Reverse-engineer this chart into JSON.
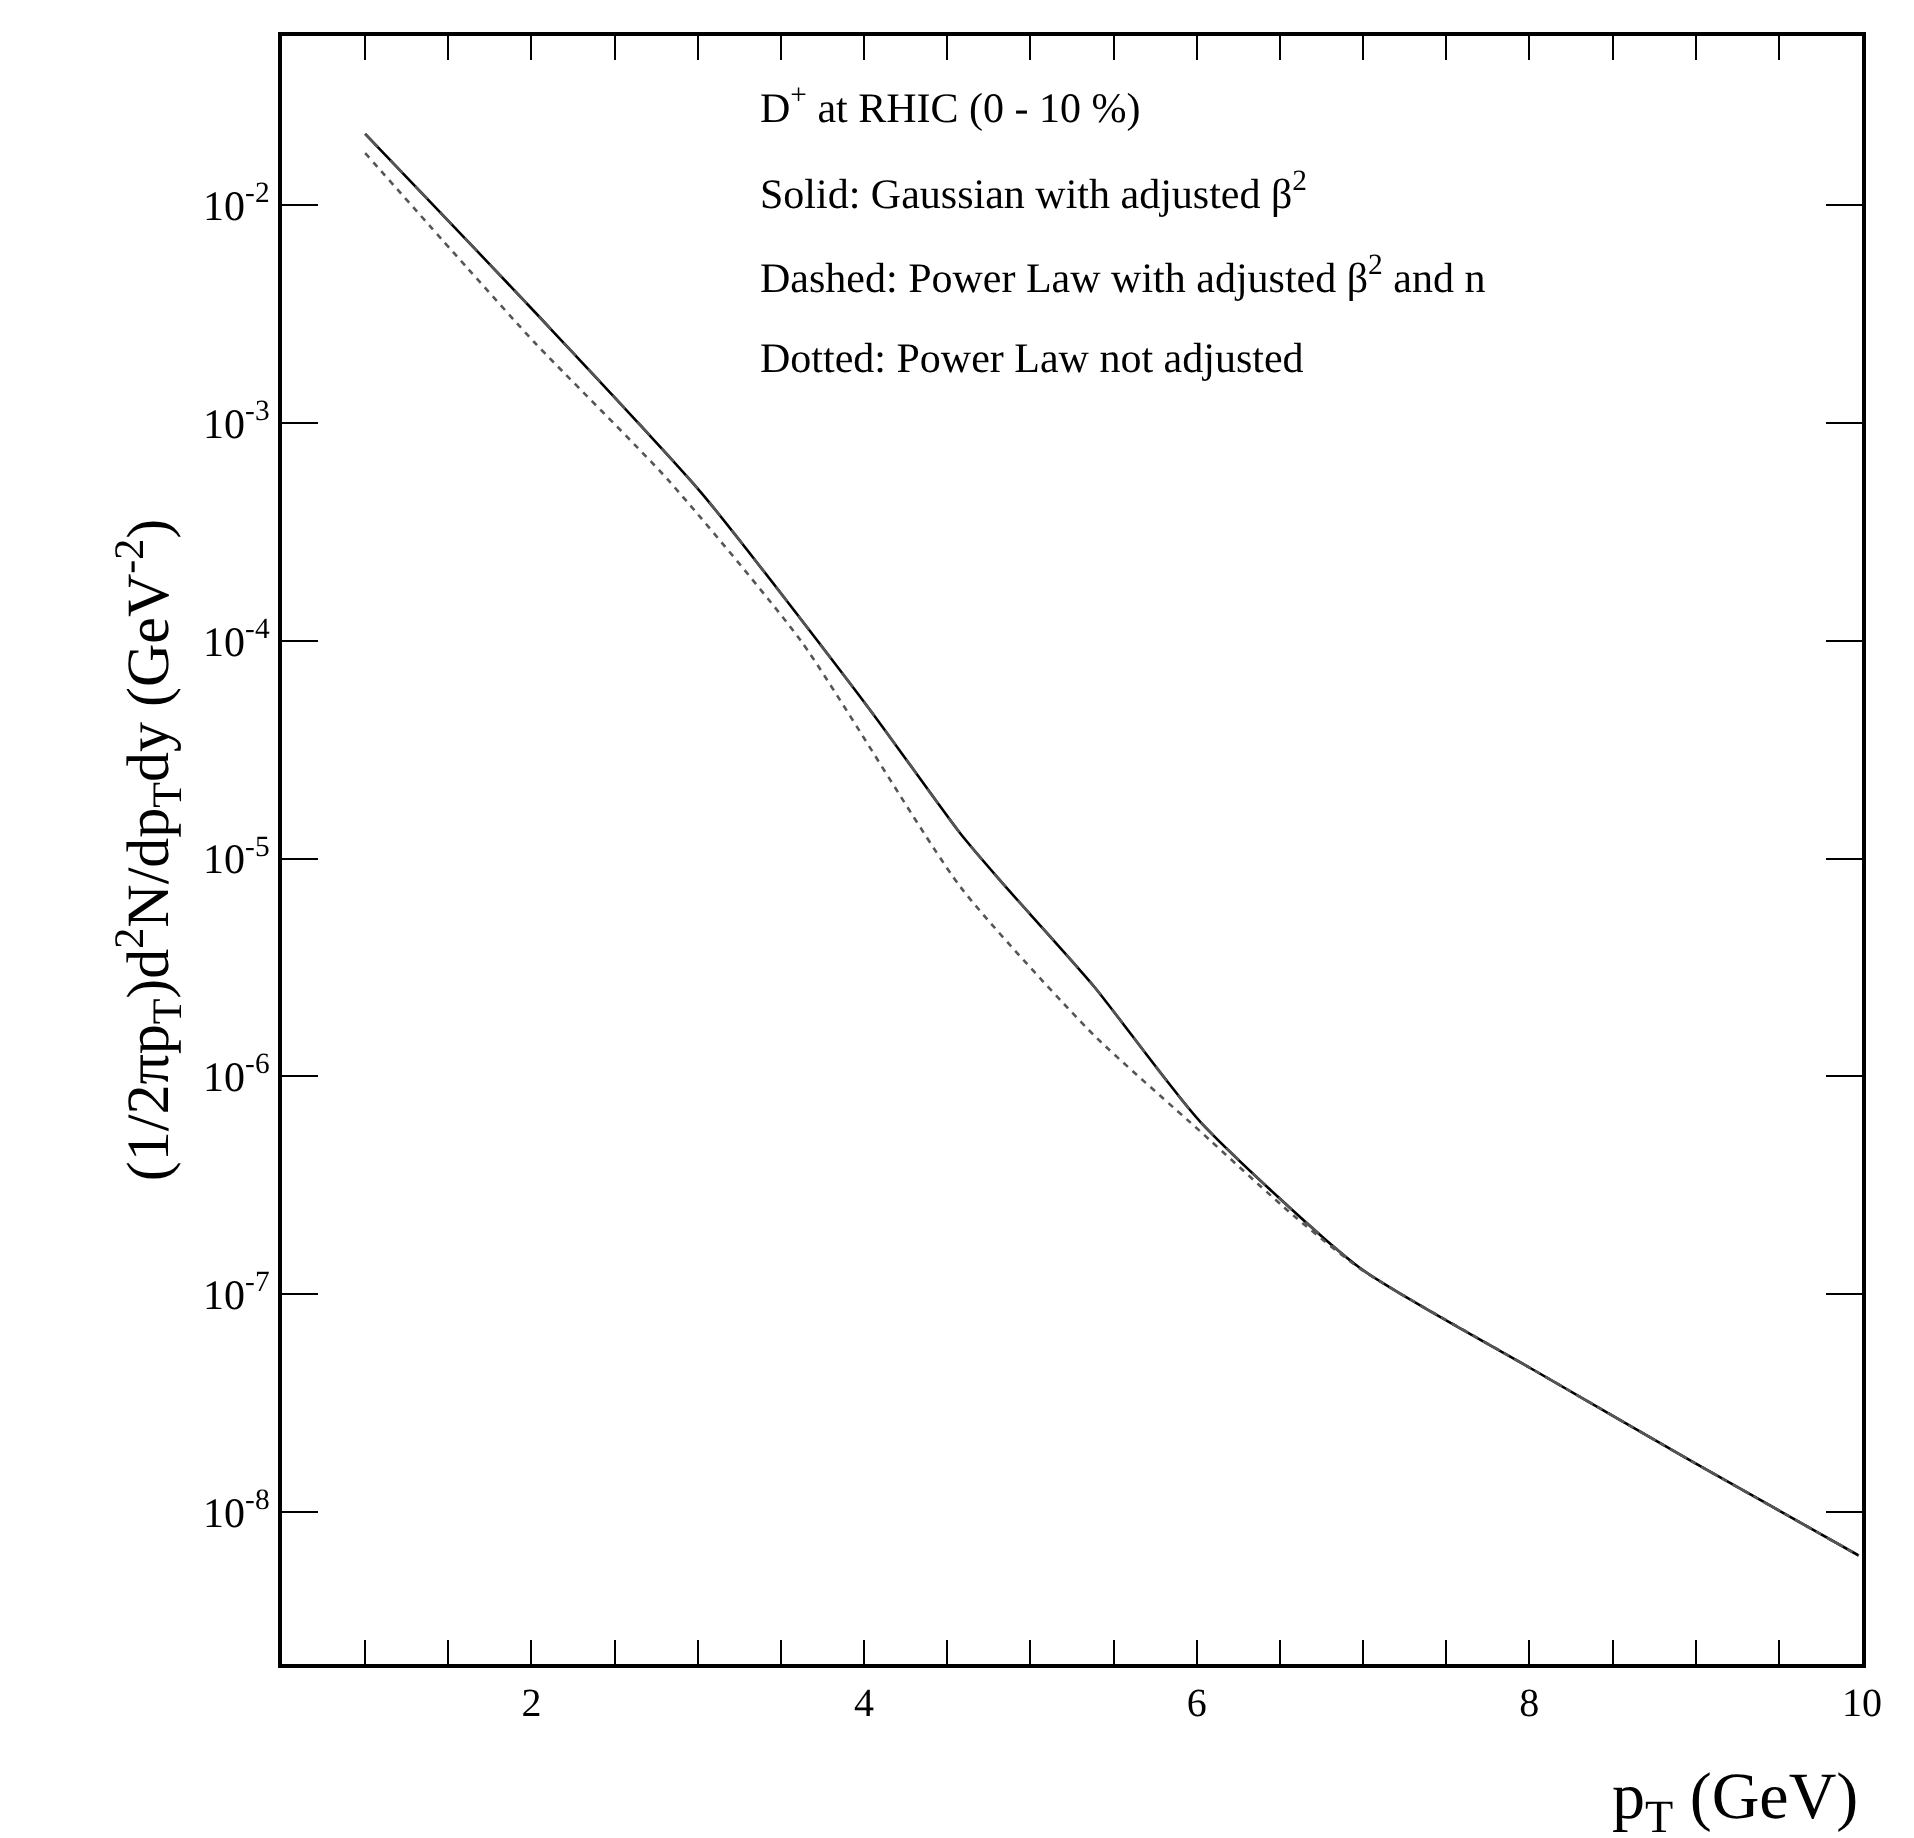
{
  "chart_data": {
    "type": "line",
    "xlabel": "p$_{T}$ (GeV)",
    "ylabel": "(1/2πp$_{T}$)d$^{2}$N/dp$_{T}$dy (GeV$^{-2}$)",
    "annotations": [
      "D$^{+}$ at RHIC (0 - 10 %)",
      "Solid: Gaussian with adjusted β$^{2}$",
      "Dashed: Power Law with adjusted β$^{2}$ and n",
      "Dotted: Power Law not adjusted"
    ],
    "log": "y",
    "grid": false,
    "marker": "none",
    "xlim": [
      0.5,
      10
    ],
    "ylim": [
      2e-09,
      0.06
    ],
    "xticks": [
      {
        "value": 1,
        "label": null
      },
      {
        "value": 1.5,
        "label": null
      },
      2,
      {
        "value": 2.5,
        "label": null
      },
      {
        "value": 3,
        "label": null
      },
      {
        "value": 3.5,
        "label": null
      },
      4,
      {
        "value": 4.5,
        "label": null
      },
      {
        "value": 5,
        "label": null
      },
      {
        "value": 5.5,
        "label": null
      },
      6,
      {
        "value": 6.5,
        "label": null
      },
      {
        "value": 7,
        "label": null
      },
      {
        "value": 7.5,
        "label": null
      },
      8,
      {
        "value": 8.5,
        "label": null
      },
      {
        "value": 9,
        "label": null
      },
      {
        "value": 9.5,
        "label": null
      },
      10
    ],
    "yticks": [
      {
        "value": 0.01,
        "label": "10$^{-2}$"
      },
      {
        "value": 0.001,
        "label": "10$^{-3}$"
      },
      {
        "value": 0.0001,
        "label": "10$^{-4}$"
      },
      {
        "value": 1e-05,
        "label": "10$^{-5}$"
      },
      {
        "value": 1e-06,
        "label": "10$^{-6}$"
      },
      {
        "value": 1e-07,
        "label": "10$^{-7}$"
      },
      {
        "value": 1e-08,
        "label": "10$^{-8}$"
      }
    ],
    "series": [
      {
        "color": "#000000",
        "line_style": "solid",
        "x": [
          1.0,
          1.5,
          2.02,
          3.02,
          4.02,
          4.58,
          4.82,
          5.38,
          6.02,
          6.98,
          8.0,
          8.98,
          9.98
        ],
        "values": [
          0.0213,
          0.0085,
          0.00324,
          0.00048,
          5e-05,
          1.3e-05,
          7.9e-06,
          2.6e-06,
          6.2e-07,
          1.32e-07,
          4.6e-08,
          1.7e-08,
          6.3e-09
        ]
      },
      {
        "color": "#555555",
        "line_style": "dashed",
        "x": [
          1.0,
          1.5,
          2.02,
          3.02,
          4.02,
          4.58,
          4.82,
          5.38,
          6.02,
          6.98,
          8.0,
          8.98,
          9.98
        ],
        "values": [
          0.0213,
          0.0085,
          0.00324,
          0.00048,
          5e-05,
          1.3e-05,
          7.9e-06,
          2.6e-06,
          6.2e-07,
          1.32e-07,
          4.6e-08,
          1.7e-08,
          6.3e-09
        ]
      },
      {
        "color": "#555555",
        "line_style": "dotted",
        "x": [
          1.0,
          1.62,
          2.02,
          2.82,
          3.62,
          4.58,
          5.38,
          6.02,
          6.58,
          7.0,
          8.0,
          8.98,
          9.98
        ],
        "values": [
          0.0174,
          0.0051,
          0.00234,
          0.00055,
          0.0001,
          7.4e-06,
          1.55e-06,
          5.6e-07,
          2.3e-07,
          1.28e-07,
          4.6e-08,
          1.7e-08,
          6.3e-09
        ]
      }
    ]
  }
}
